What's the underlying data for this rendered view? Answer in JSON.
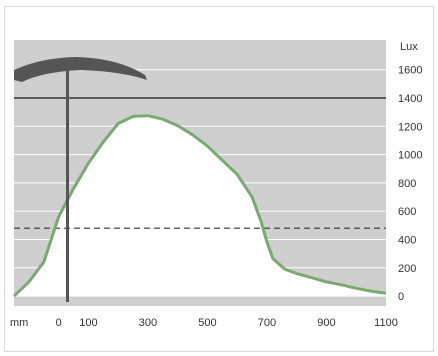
{
  "chart_data": {
    "type": "area",
    "title": "",
    "xlabel": "mm",
    "ylabel": "Lux",
    "xlim": [
      -150,
      1100
    ],
    "ylim": [
      -70,
      1810
    ],
    "x_ticks": [
      0,
      100,
      300,
      500,
      700,
      900,
      1100
    ],
    "y_ticks": [
      0,
      200,
      400,
      600,
      800,
      1000,
      1200,
      1400,
      1600
    ],
    "grid": true,
    "reference_lines": [
      {
        "style": "solid",
        "value": 1400
      },
      {
        "style": "dashed",
        "value": 480
      }
    ],
    "lamp_position_x": 0,
    "series": [
      {
        "x": [
          -150,
          -100,
          -50,
          0,
          50,
          100,
          150,
          200,
          250,
          300,
          350,
          400,
          450,
          500,
          550,
          600,
          650,
          680,
          700,
          720,
          760,
          800,
          850,
          900,
          950,
          1000,
          1050,
          1100
        ],
        "y": [
          0,
          100,
          240,
          560,
          760,
          940,
          1090,
          1220,
          1270,
          1275,
          1250,
          1205,
          1140,
          1060,
          960,
          860,
          700,
          530,
          380,
          265,
          190,
          160,
          130,
          100,
          80,
          55,
          35,
          20
        ]
      }
    ],
    "colors": {
      "curve": "#7aaa72",
      "background": "#cfcfcf",
      "under_curve": "#ffffff",
      "grid": "#ffffff",
      "lamp": "#555555"
    }
  }
}
